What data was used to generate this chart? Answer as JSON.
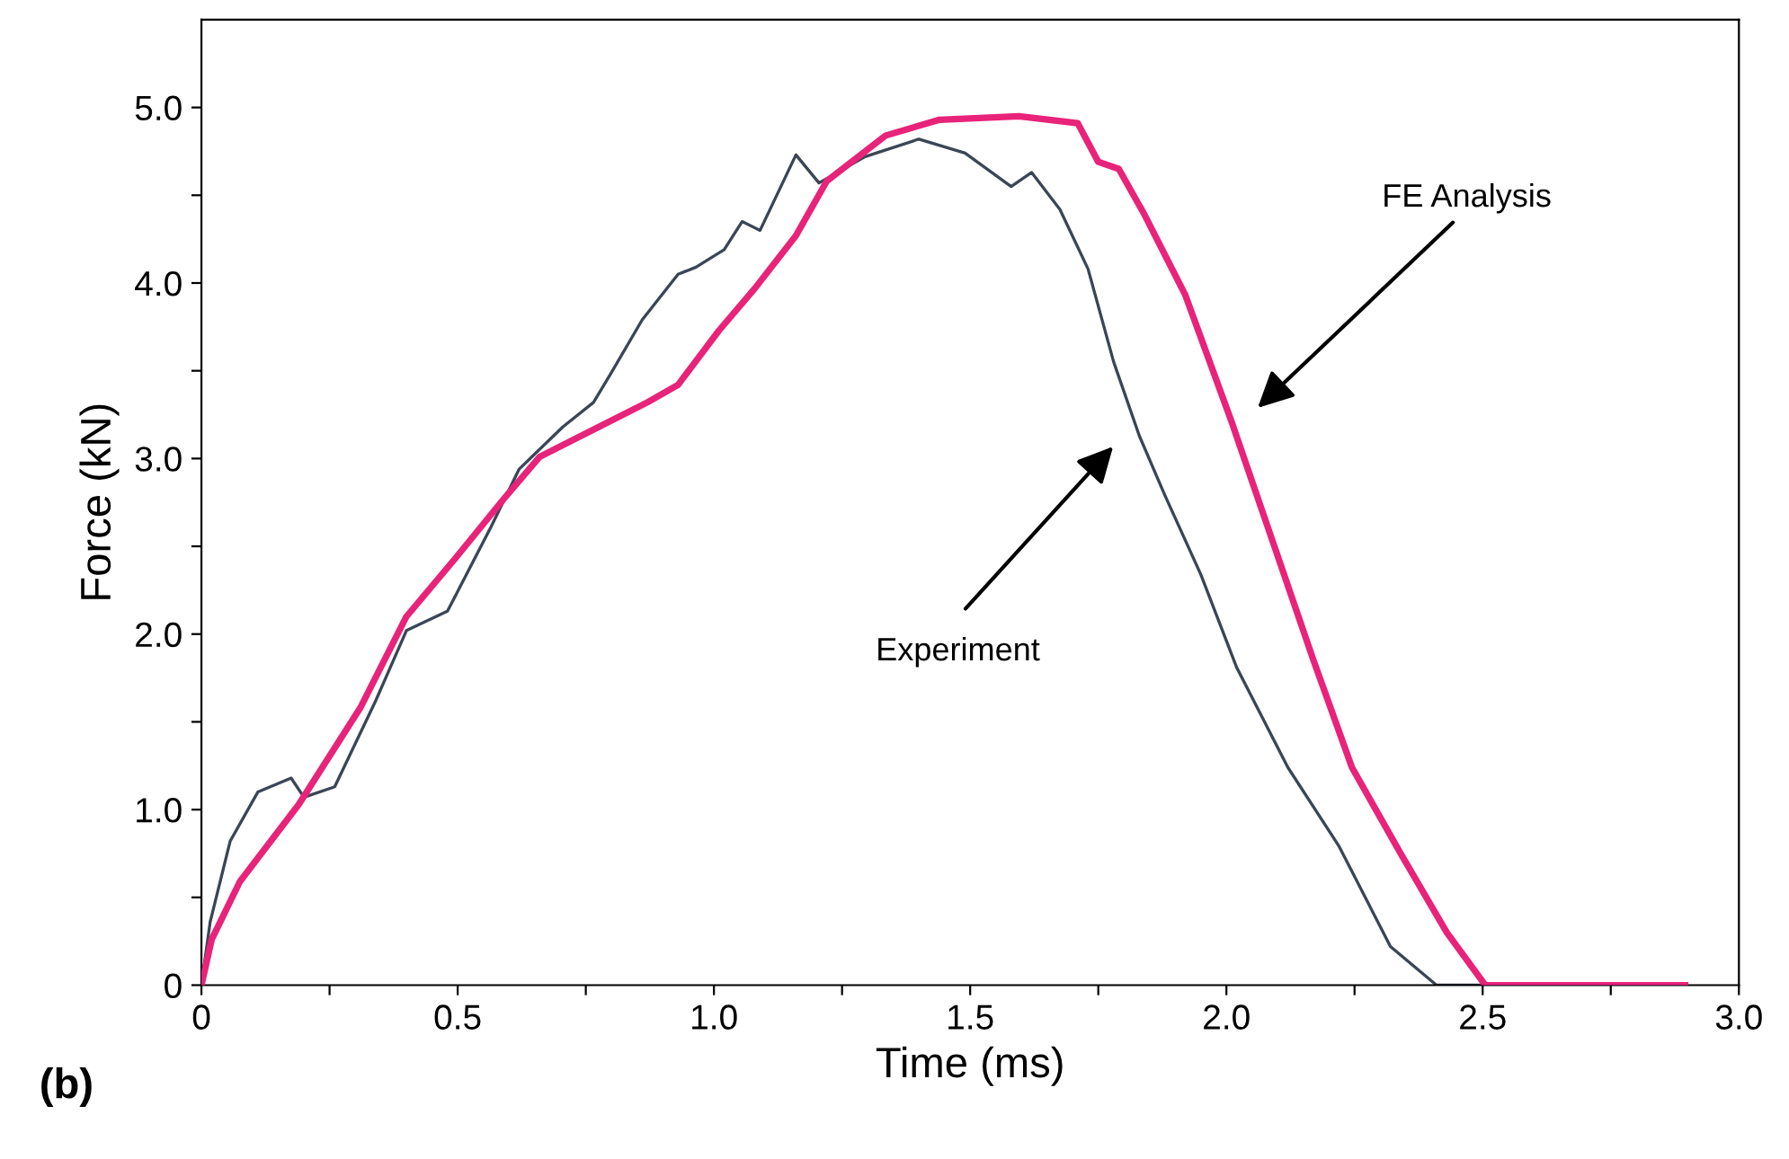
{
  "chart_data": {
    "type": "line",
    "xlabel": "Time (ms)",
    "ylabel": "Force (kN)",
    "xlim": [
      0,
      3.0
    ],
    "ylim": [
      0,
      5.5
    ],
    "xticks": [
      0,
      {
        "value": 0.25,
        "label": null
      },
      0.5,
      {
        "value": 0.75,
        "label": null
      },
      {
        "value": 1,
        "label": "1.0"
      },
      {
        "value": 1.25,
        "label": null
      },
      1.5,
      {
        "value": 1.75,
        "label": null
      },
      {
        "value": 2,
        "label": "2.0"
      },
      {
        "value": 2.25,
        "label": null
      },
      2.5,
      {
        "value": 2.75,
        "label": null
      },
      {
        "value": 3,
        "label": "3.0"
      }
    ],
    "yticks": [
      0,
      {
        "value": 0.5,
        "label": null
      },
      {
        "value": 1,
        "label": "1.0"
      },
      {
        "value": 1.5,
        "label": null
      },
      {
        "value": 2,
        "label": "2.0"
      },
      {
        "value": 2.5,
        "label": null
      },
      {
        "value": 3,
        "label": "3.0"
      },
      {
        "value": 3.5,
        "label": null
      },
      {
        "value": 4,
        "label": "4.0"
      },
      {
        "value": 4.5,
        "label": null
      },
      {
        "value": 5,
        "label": "5.0"
      }
    ],
    "series": [
      {
        "color": "#3a4656",
        "x": [
          0,
          0.017,
          0.056,
          0.11,
          0.175,
          0.2,
          0.26,
          0.34,
          0.4,
          0.48,
          0.565,
          0.62,
          0.705,
          0.765,
          0.8,
          0.86,
          0.93,
          0.965,
          1.02,
          1.055,
          1.09,
          1.16,
          1.205,
          1.295,
          1.4,
          1.49,
          1.58,
          1.62,
          1.675,
          1.73,
          1.78,
          1.83,
          1.88,
          1.95,
          2.02,
          2.12,
          2.22,
          2.32,
          2.41,
          2.5
        ],
        "values": [
          0,
          0.36,
          0.82,
          1.1,
          1.18,
          1.07,
          1.13,
          1.62,
          2.02,
          2.13,
          2.61,
          2.94,
          3.18,
          3.32,
          3.49,
          3.79,
          4.05,
          4.09,
          4.19,
          4.35,
          4.3,
          4.73,
          4.57,
          4.72,
          4.82,
          4.74,
          4.55,
          4.63,
          4.42,
          4.08,
          3.55,
          3.13,
          2.79,
          2.34,
          1.81,
          1.24,
          0.79,
          0.22,
          0,
          0
        ]
      },
      {
        "color": "#e8237a",
        "x": [
          0,
          0.02,
          0.075,
          0.19,
          0.31,
          0.4,
          0.495,
          0.59,
          0.66,
          0.775,
          0.87,
          0.93,
          1.01,
          1.08,
          1.16,
          1.22,
          1.335,
          1.44,
          1.595,
          1.71,
          1.75,
          1.79,
          1.84,
          1.92,
          2.01,
          2.09,
          2.17,
          2.245,
          2.34,
          2.43,
          2.505,
          2.895
        ],
        "values": [
          0,
          0.26,
          0.59,
          1.03,
          1.58,
          2.1,
          2.43,
          2.77,
          3.01,
          3.18,
          3.32,
          3.42,
          3.73,
          3.97,
          4.27,
          4.58,
          4.84,
          4.93,
          4.95,
          4.91,
          4.69,
          4.65,
          4.39,
          3.93,
          3.21,
          2.53,
          1.85,
          1.24,
          0.75,
          0.3,
          0,
          0
        ]
      }
    ],
    "annotations": [
      "Experiment",
      "FE Analysis",
      "(b)"
    ]
  }
}
